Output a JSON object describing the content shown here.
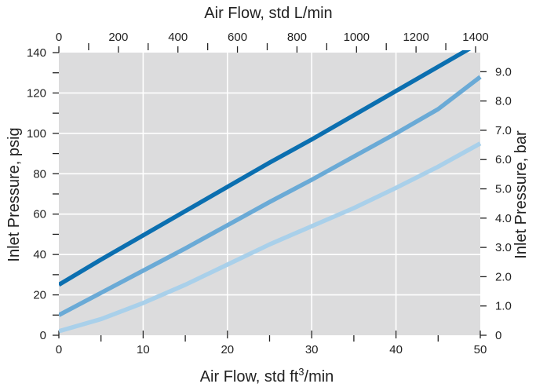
{
  "chart_data": {
    "type": "line",
    "x": [
      0,
      5,
      10,
      15,
      20,
      25,
      30,
      35,
      40,
      45,
      50
    ],
    "series": [
      {
        "color": "#0b6fb0",
        "values": [
          25,
          37.5,
          49.5,
          61.5,
          73.5,
          85.5,
          97,
          109,
          121,
          133,
          145
        ]
      },
      {
        "color": "#6aaad6",
        "values": [
          10,
          21,
          32,
          43,
          54.5,
          66,
          77,
          88.5,
          100,
          112,
          128
        ]
      },
      {
        "color": "#a9d0ea",
        "values": [
          2,
          8,
          16,
          25,
          35,
          45,
          54,
          63,
          73,
          83.5,
          95
        ]
      }
    ],
    "xlabel": "Air Flow, std ft",
    "xlabel_superscript": "3",
    "xlabel_suffix": "/min",
    "xlim": [
      0,
      50
    ],
    "x_ticks": [
      0,
      10,
      20,
      30,
      40,
      50
    ],
    "x_minor_ticks": [
      5,
      15,
      25,
      35,
      45
    ],
    "ylabel": "Inlet Pressure, psig",
    "ylim": [
      0,
      140
    ],
    "y_ticks": [
      0,
      20,
      40,
      60,
      80,
      100,
      120,
      140
    ],
    "y_minor_ticks": [
      10,
      30,
      50,
      70,
      90,
      110,
      130
    ],
    "top_axis": {
      "label": "Air Flow, std L/min",
      "ticks": [
        0,
        200,
        400,
        600,
        800,
        1000,
        1200,
        1400
      ],
      "tick_labels": [
        "0",
        "200",
        "400",
        "600",
        "800",
        "1000",
        "1200",
        "1400"
      ],
      "minor_ticks": [
        100,
        300,
        500,
        700,
        900,
        1100,
        1300
      ],
      "per_bottom_unit": 28.3168
    },
    "right_axis": {
      "label": "Inlet Pressure, bar",
      "ticks": [
        0,
        1,
        2,
        3,
        4,
        5,
        6,
        7,
        8,
        9
      ],
      "tick_labels": [
        "0",
        "1.0",
        "2.0",
        "3.0",
        "4.0",
        "5.0",
        "6.0",
        "7.0",
        "8.0",
        "9.0"
      ],
      "per_left_unit": 0.0689476
    },
    "grid": true,
    "plot_background": "#dcdcdd",
    "grid_color": "#ffffff"
  }
}
